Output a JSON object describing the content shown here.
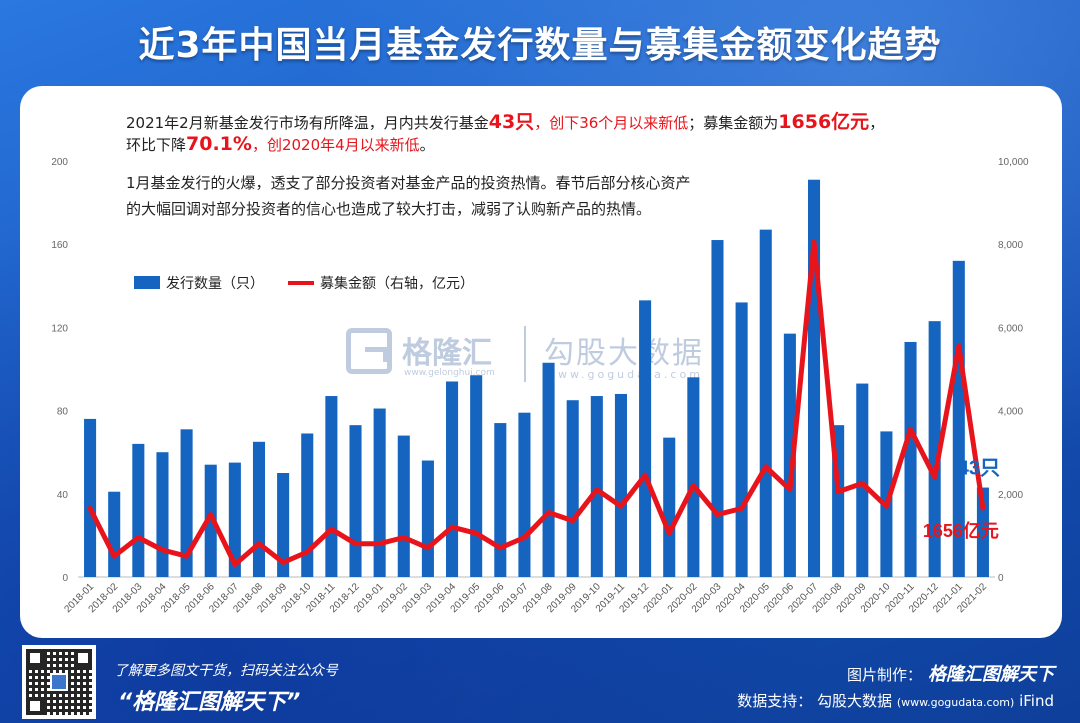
{
  "header": {
    "title": "近3年中国当月基金发行数量与募集金额变化趋势"
  },
  "notes": {
    "line1_a": "2021年2月新基金发行市场有所降温，月内共发行基金",
    "line1_b": "43只",
    "line1_c": "，创下36个月以来新低",
    "line1_d": "；募集金额为",
    "line1_e": "1656亿元",
    "line1_f": "，",
    "line2_a": "环比下降",
    "line2_b": "70.1%",
    "line2_c": "，创2020年4月以来新低",
    "line2_d": "。",
    "line3": "1月基金发行的火爆，透支了部分投资者对基金产品的投资热情。春节后部分核心资产",
    "line4": "的大幅回调对部分投资者的信心也造成了较大打击，减弱了认购新产品的热情。"
  },
  "watermark": {
    "name1": "格隆汇",
    "url1": "www.gelonghui.com",
    "name2": "勾股大数据",
    "url2": "www.gogudata.com"
  },
  "callouts": {
    "count": "43只",
    "amount": "1656亿元"
  },
  "footer": {
    "promo": "了解更多图文干货，扫码关注公众号",
    "slogan": "“格隆汇图解天下”",
    "made_by_label": "图片制作：",
    "made_by_brand": "格隆汇图解天下",
    "source_label": "数据支持：",
    "source_name": "勾股大数据",
    "source_url": "(www.gogudata.com)",
    "source_extra": "iFind"
  },
  "colors": {
    "bar": "#1565c0",
    "line": "#e8141b",
    "count_callout": "#1565c0",
    "amount_callout": "#e8141b"
  },
  "chart_data": {
    "type": "bar",
    "categories": [
      "2018-01",
      "2018-02",
      "2018-03",
      "2018-04",
      "2018-05",
      "2018-06",
      "2018-07",
      "2018-08",
      "2018-09",
      "2018-10",
      "2018-11",
      "2018-12",
      "2019-01",
      "2019-02",
      "2019-03",
      "2019-04",
      "2019-05",
      "2019-06",
      "2019-07",
      "2019-08",
      "2019-09",
      "2019-10",
      "2019-11",
      "2019-12",
      "2020-01",
      "2020-02",
      "2020-03",
      "2020-04",
      "2020-05",
      "2020-06",
      "2020-07",
      "2020-08",
      "2020-09",
      "2020-10",
      "2020-11",
      "2020-12",
      "2021-01",
      "2021-02"
    ],
    "series": [
      {
        "name": "发行数量（只）",
        "type": "bar",
        "axis": "left",
        "values": [
          76,
          41,
          64,
          60,
          71,
          54,
          55,
          65,
          50,
          69,
          87,
          73,
          81,
          68,
          56,
          94,
          97,
          74,
          79,
          103,
          85,
          87,
          88,
          133,
          67,
          96,
          162,
          132,
          167,
          117,
          191,
          73,
          93,
          70,
          113,
          123,
          152,
          43
        ]
      },
      {
        "name": "募集金额（右轴，亿元）",
        "type": "line",
        "axis": "right",
        "values": [
          1650,
          500,
          950,
          650,
          500,
          1500,
          300,
          800,
          350,
          600,
          1150,
          800,
          800,
          950,
          700,
          1200,
          1050,
          700,
          950,
          1550,
          1350,
          2100,
          1700,
          2450,
          1050,
          2200,
          1500,
          1650,
          2650,
          2100,
          8050,
          2050,
          2250,
          1700,
          3550,
          2400,
          5550,
          1656
        ]
      }
    ],
    "ylim_left": [
      0,
      200
    ],
    "yticks_left": [
      "0",
      "40",
      "80",
      "120",
      "160",
      "200"
    ],
    "ylim_right": [
      0,
      10000
    ],
    "yticks_right": [
      "0",
      "2,000",
      "4,000",
      "6,000",
      "8,000",
      "10,000"
    ],
    "legend_position": "top-left",
    "grid": false
  }
}
